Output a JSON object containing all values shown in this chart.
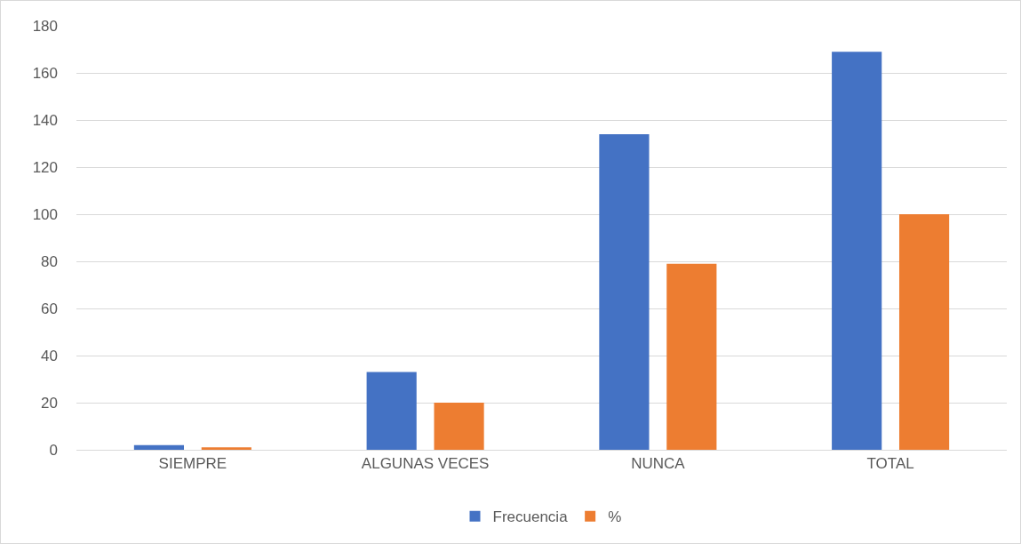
{
  "chart_data": {
    "type": "bar",
    "categories": [
      "SIEMPRE",
      "ALGUNAS VECES",
      "NUNCA",
      "TOTAL"
    ],
    "series": [
      {
        "name": "Frecuencia",
        "color": "#4472c4",
        "values": [
          2,
          33,
          134,
          169
        ]
      },
      {
        "name": "%",
        "color": "#ed7d31",
        "values": [
          1,
          20,
          79,
          100
        ]
      }
    ],
    "ylim": [
      0,
      180
    ],
    "yticks": [
      0,
      20,
      40,
      60,
      80,
      100,
      120,
      140,
      160,
      180
    ],
    "grid": "y",
    "legend": "bottom"
  }
}
